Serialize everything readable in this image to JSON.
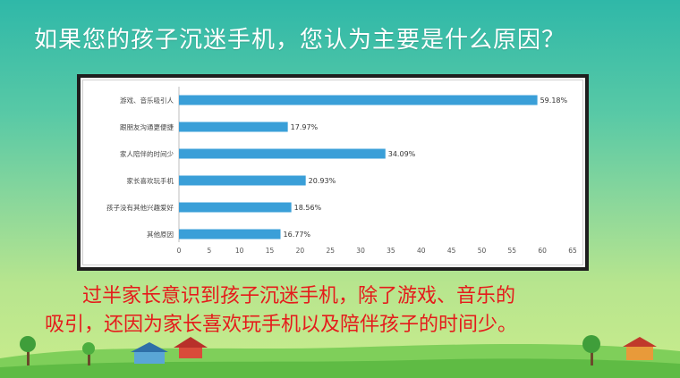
{
  "slide": {
    "title": "如果您的孩子沉迷手机，您认为主要是什么原因？",
    "note_line1": "过半家长意识到孩子沉迷手机，除了游戏、音乐的",
    "note_line2": "吸引，还因为家长喜欢玩手机以及陪伴孩子的时间少。"
  },
  "colors": {
    "bar": "#3a9fd8",
    "title_text": "#ffffff",
    "note_text": "#e51b1b"
  },
  "chart_data": {
    "type": "bar",
    "orientation": "horizontal",
    "categories": [
      "游戏、音乐吸引人",
      "跟朋友沟通更便捷",
      "家人陪伴的时间少",
      "家长喜欢玩手机",
      "孩子没有其他兴趣爱好",
      "其他原因"
    ],
    "values": [
      59.18,
      17.97,
      34.09,
      20.93,
      18.56,
      16.77
    ],
    "value_labels": [
      "59.18%",
      "17.97%",
      "34.09%",
      "20.93%",
      "18.56%",
      "16.77%"
    ],
    "xlim": [
      0,
      65
    ],
    "x_ticks": [
      0,
      5,
      10,
      15,
      20,
      25,
      30,
      35,
      40,
      45,
      50,
      55,
      60,
      65
    ],
    "grid": false,
    "legend": "none"
  }
}
